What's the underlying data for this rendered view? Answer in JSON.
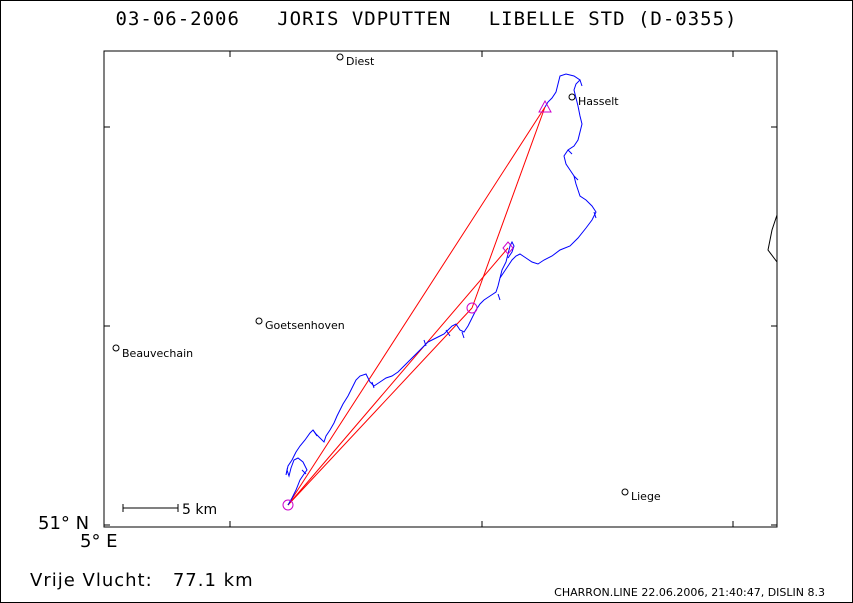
{
  "header": {
    "date": "03-06-2006",
    "pilot": "JORIS VDPUTTEN",
    "glider": "LIBELLE STD (D-0355)"
  },
  "axes": {
    "lat_label": "51° N",
    "lon_label": "5° E"
  },
  "scale_bar": {
    "label": "5 km"
  },
  "places": [
    {
      "name": "Diest"
    },
    {
      "name": "Hasselt"
    },
    {
      "name": "Goetsenhoven"
    },
    {
      "name": "Beauvechain"
    },
    {
      "name": "Liege"
    }
  ],
  "summary": {
    "label": "Vrije Vlucht:",
    "value": "77.1 km"
  },
  "footer": {
    "text": "CHARRON.LINE 22.06.2006, 21:40:47, DISLIN 8.3"
  },
  "colors": {
    "track": "#0000ff",
    "task_line": "#ff0000",
    "turnpoint": "#cc00cc",
    "frame": "#000000"
  }
}
